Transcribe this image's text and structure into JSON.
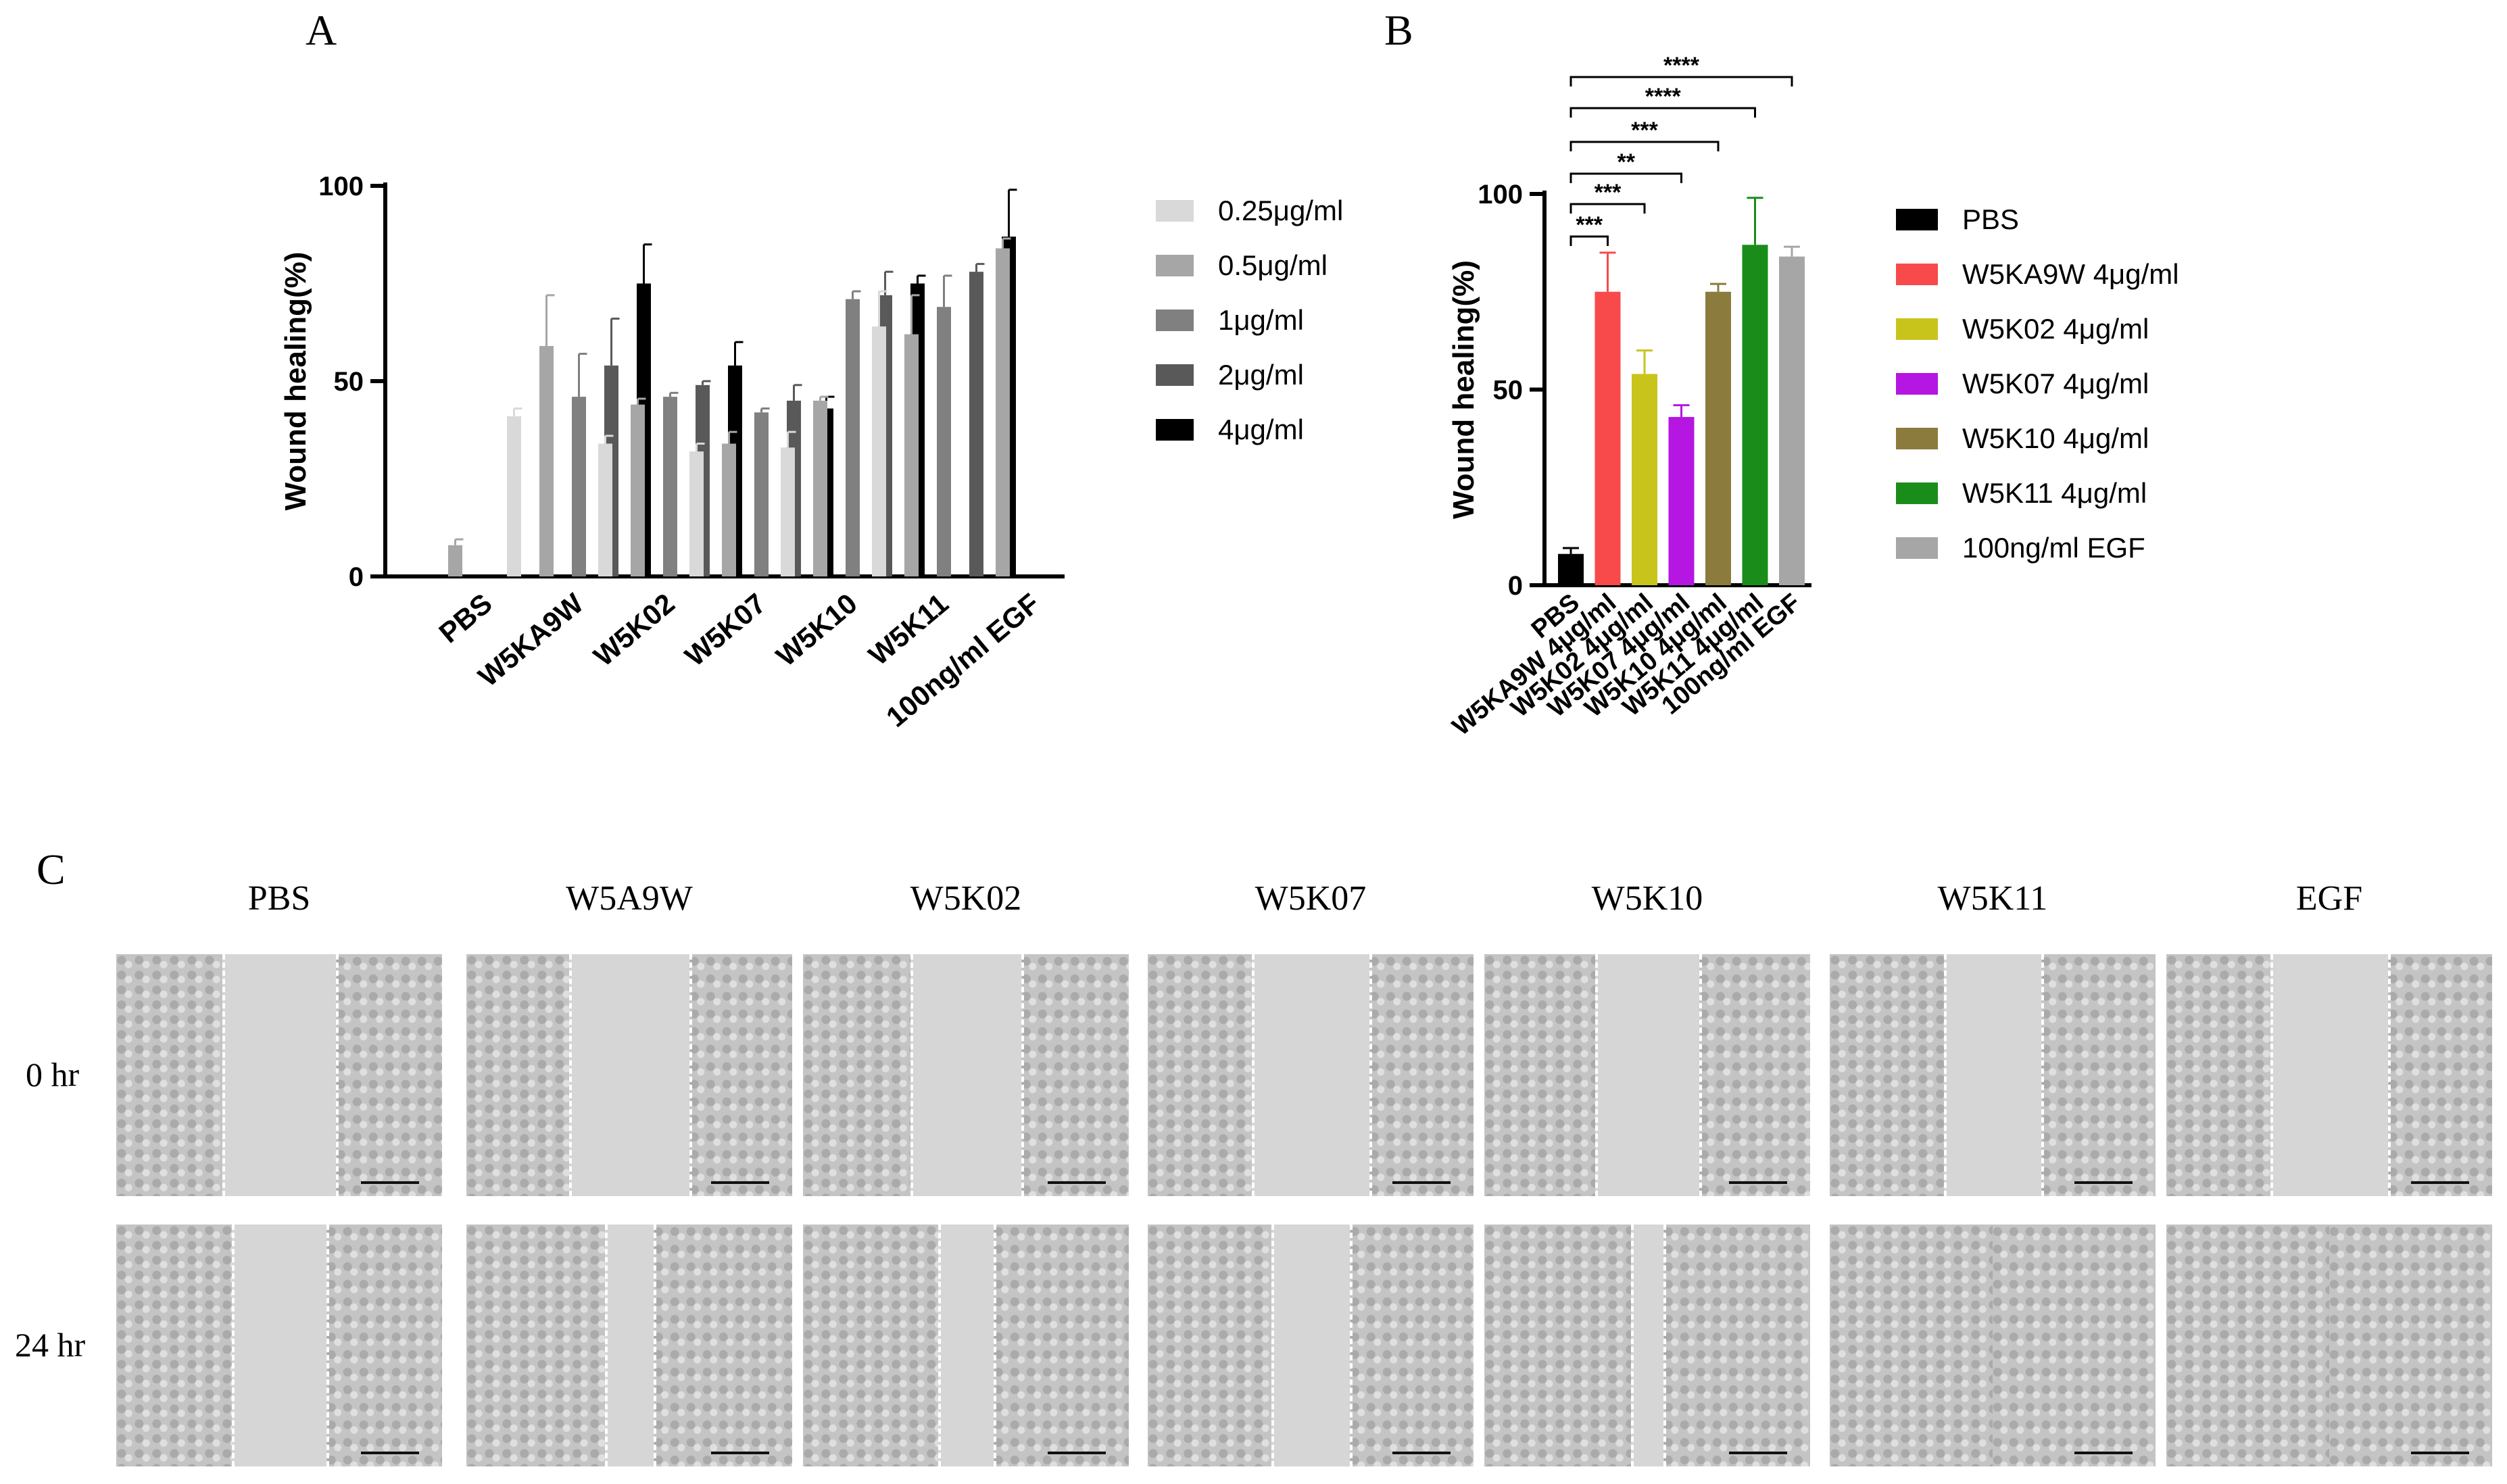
{
  "panel_labels": {
    "a": "A",
    "b": "B",
    "c": "C"
  },
  "chart_data": [
    {
      "type": "bar",
      "title": "",
      "ylabel": "Wound healing(%)",
      "xlabel": "",
      "ylim": [
        0,
        100
      ],
      "yticks": [
        0,
        50,
        100
      ],
      "categories": [
        "PBS",
        "W5KA9W",
        "W5K02",
        "W5K07",
        "W5K10",
        "W5K11",
        "100ng/ml EGF"
      ],
      "legend_position": "right",
      "series": [
        {
          "name": "0.25μg/ml",
          "color": "#d9d9d9",
          "values": [
            null,
            41,
            34,
            32,
            33,
            64,
            null
          ],
          "errors": [
            null,
            2,
            2,
            2,
            4,
            9,
            null
          ]
        },
        {
          "name": "0.5μg/ml",
          "color": "#a6a6a6",
          "values": [
            8,
            59,
            44,
            34,
            45,
            62,
            84
          ],
          "errors": [
            1.5,
            13,
            1.5,
            3,
            1,
            10,
            2.5
          ]
        },
        {
          "name": "1μg/ml",
          "color": "#808080",
          "values": [
            null,
            46,
            46,
            42,
            71,
            69,
            null
          ],
          "errors": [
            null,
            11,
            1,
            1,
            2,
            8,
            null
          ]
        },
        {
          "name": "2μg/ml",
          "color": "#595959",
          "values": [
            null,
            54,
            49,
            45,
            72,
            78,
            null
          ],
          "errors": [
            null,
            12,
            1,
            4,
            6,
            2,
            null
          ]
        },
        {
          "name": "4μg/ml",
          "color": "#000000",
          "values": [
            null,
            75,
            54,
            43,
            75,
            87,
            null
          ],
          "errors": [
            null,
            10,
            6,
            3,
            2,
            12,
            null
          ]
        }
      ]
    },
    {
      "type": "bar",
      "title": "",
      "ylabel": "Wound healing(%)",
      "xlabel": "",
      "ylim": [
        0,
        100
      ],
      "yticks": [
        0,
        50,
        100
      ],
      "categories": [
        "PBS",
        "W5KA9W 4μg/ml",
        "W5K02 4μg/ml",
        "W5K07 4μg/ml",
        "W5K10 4μg/ml",
        "W5K11 4μg/ml",
        "100ng/ml EGF"
      ],
      "values": [
        8,
        75,
        54,
        43,
        75,
        87,
        84
      ],
      "errors": [
        1.5,
        10,
        6,
        3,
        2,
        12,
        2.5
      ],
      "colors": [
        "#000000",
        "#f84a4a",
        "#c9c41c",
        "#b516e2",
        "#8b7b3c",
        "#1a8c1a",
        "#a6a6a6"
      ],
      "legend_position": "right",
      "legend": [
        {
          "name": "PBS",
          "color": "#000000"
        },
        {
          "name": "W5KA9W 4μg/ml",
          "color": "#f84a4a"
        },
        {
          "name": "W5K02 4μg/ml",
          "color": "#c9c41c"
        },
        {
          "name": "W5K07 4μg/ml",
          "color": "#b516e2"
        },
        {
          "name": "W5K10 4μg/ml",
          "color": "#8b7b3c"
        },
        {
          "name": "W5K11 4μg/ml",
          "color": "#1a8c1a"
        },
        {
          "name": "100ng/ml EGF",
          "color": "#a6a6a6"
        }
      ],
      "significance": [
        {
          "from": 0,
          "to": 1,
          "label": "***"
        },
        {
          "from": 0,
          "to": 2,
          "label": "***"
        },
        {
          "from": 0,
          "to": 3,
          "label": "**"
        },
        {
          "from": 0,
          "to": 4,
          "label": "***"
        },
        {
          "from": 0,
          "to": 5,
          "label": "****"
        },
        {
          "from": 0,
          "to": 6,
          "label": "****"
        }
      ]
    }
  ],
  "micrographs": {
    "columns": [
      "PBS",
      "W5A9W",
      "W5K02",
      "W5K07",
      "W5K10",
      "W5K11",
      "EGF"
    ],
    "rows": [
      "0 hr",
      "24 hr"
    ],
    "gaps_0hr": [
      0.35,
      0.37,
      0.34,
      0.36,
      0.32,
      0.3,
      0.36
    ],
    "gaps_24hr": [
      0.29,
      0.15,
      0.17,
      0.24,
      0.1,
      0.0,
      0.0
    ]
  }
}
